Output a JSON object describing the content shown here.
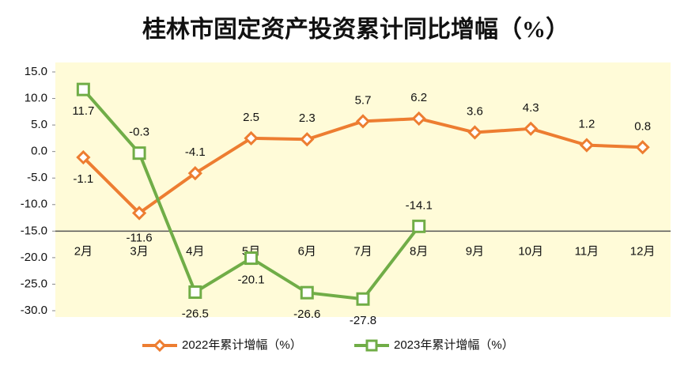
{
  "chart_data": {
    "type": "line",
    "title": "桂林市固定资产投资累计同比增幅（%）",
    "categories": [
      "2月",
      "3月",
      "4月",
      "5月",
      "6月",
      "7月",
      "8月",
      "9月",
      "10月",
      "11月",
      "12月"
    ],
    "series": [
      {
        "name": "2022年累计增幅（%）",
        "color": "#ed7d31",
        "marker": "diamond",
        "values": [
          -1.1,
          -11.6,
          -4.1,
          2.5,
          2.3,
          5.7,
          6.2,
          3.6,
          4.3,
          1.2,
          0.8
        ]
      },
      {
        "name": "2023年累计增幅（%）",
        "color": "#70ad47",
        "marker": "square",
        "values": [
          11.7,
          -0.3,
          -26.5,
          -20.1,
          -26.6,
          -27.8,
          -14.1,
          null,
          null,
          null,
          null
        ]
      }
    ],
    "ylim": [
      -30,
      15
    ],
    "yticks": [
      {
        "value": 15,
        "label": "15.0"
      },
      {
        "value": 10,
        "label": "10.0"
      },
      {
        "value": 5,
        "label": "5.0"
      },
      {
        "value": 0,
        "label": "0.0"
      },
      {
        "value": -5,
        "label": "-5.0"
      },
      {
        "value": -10,
        "label": "-10.0"
      },
      {
        "value": -15,
        "label": "-15.0"
      },
      {
        "value": -20,
        "label": "-20.0"
      },
      {
        "value": -25,
        "label": "-25.0"
      },
      {
        "value": -30,
        "label": "-30.0"
      }
    ],
    "x_axis_at": -15,
    "grid": false,
    "legend": "bottom",
    "plot_background": "#fffbd8"
  }
}
